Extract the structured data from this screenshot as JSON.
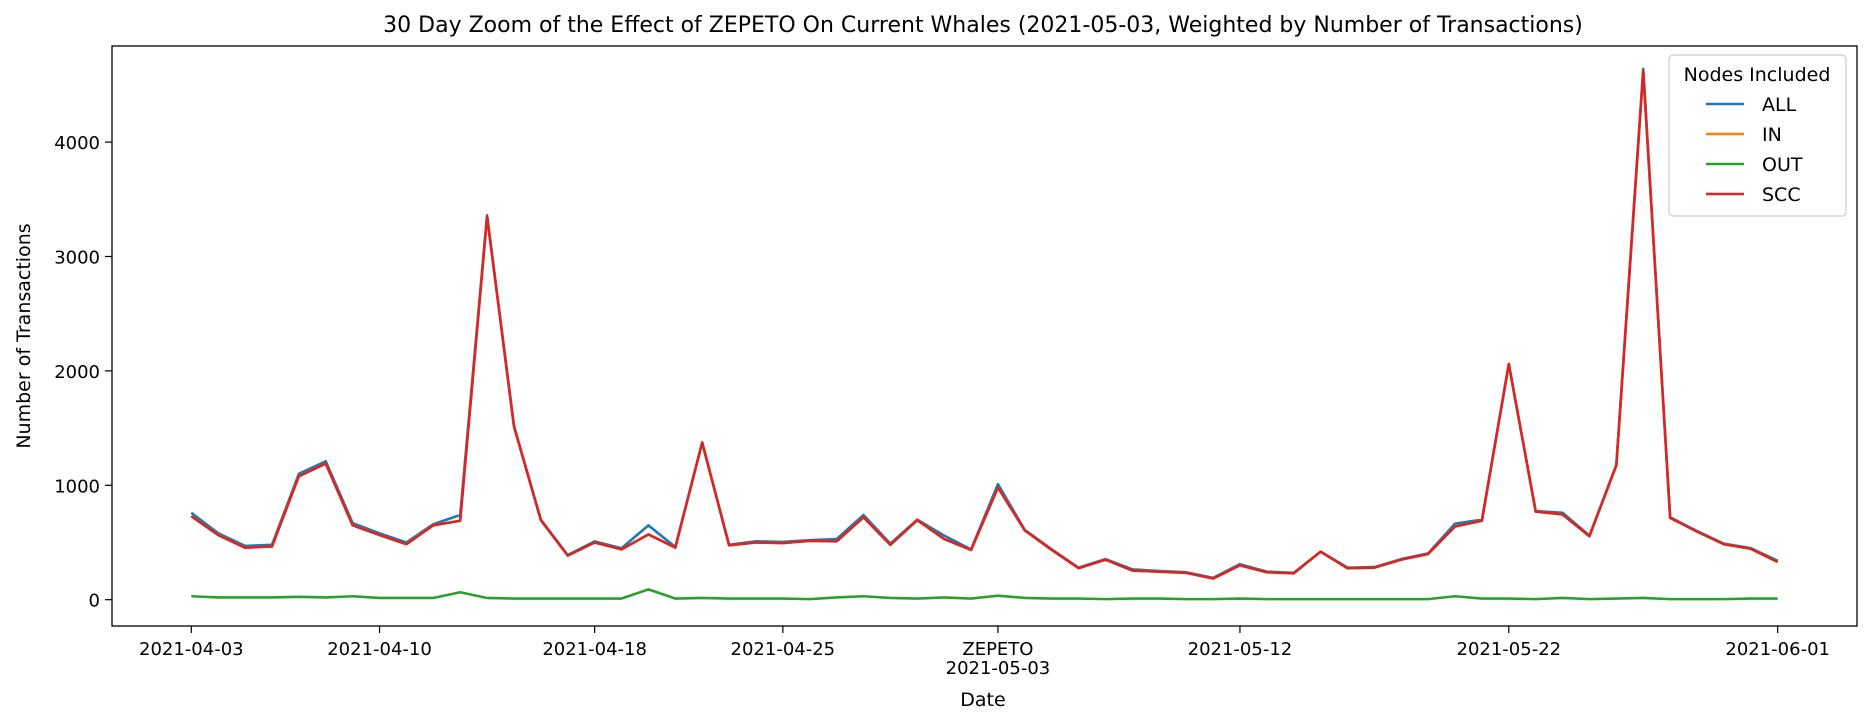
{
  "chart_data": {
    "type": "line",
    "title": "30 Day Zoom of the Effect of ZEPETO On Current Whales (2021-05-03, Weighted by Number of Transactions)",
    "xlabel": "Date",
    "ylabel": "Number of Transactions",
    "x_start": "2021-04-03",
    "x_end": "2021-06-01",
    "ylim": [
      -230,
      4840
    ],
    "yticks": [
      0,
      1000,
      2000,
      3000,
      4000
    ],
    "xticks": [
      "2021-04-03",
      "2021-04-10",
      "2021-04-18",
      "2021-04-25",
      "2021-05-03",
      "2021-05-12",
      "2021-05-22",
      "2021-06-01"
    ],
    "annotation": {
      "label": "ZEPETO",
      "date": "2021-05-03"
    },
    "grid": false,
    "legend": {
      "title": "Nodes Included",
      "placement": "top-right"
    },
    "series": [
      {
        "name": "ALL",
        "color": "#1f77b4",
        "values": [
          760,
          580,
          470,
          480,
          1100,
          1210,
          670,
          580,
          500,
          660,
          740,
          3360,
          1520,
          700,
          390,
          510,
          450,
          650,
          460,
          1370,
          480,
          510,
          505,
          520,
          530,
          740,
          490,
          700,
          560,
          440,
          1010,
          610,
          440,
          280,
          355,
          265,
          250,
          240,
          190,
          310,
          245,
          235,
          420,
          280,
          285,
          355,
          405,
          665,
          700,
          2060,
          775,
          760,
          560,
          1180,
          4640,
          720,
          600,
          490,
          450,
          340
        ]
      },
      {
        "name": "IN",
        "color": "#ff7f0e",
        "values": [
          730,
          565,
          455,
          465,
          1080,
          1190,
          650,
          565,
          485,
          650,
          690,
          3350,
          1515,
          695,
          385,
          500,
          440,
          570,
          455,
          1375,
          475,
          500,
          495,
          515,
          510,
          720,
          480,
          695,
          530,
          435,
          980,
          605,
          435,
          275,
          350,
          255,
          245,
          235,
          185,
          300,
          240,
          230,
          420,
          275,
          280,
          350,
          400,
          640,
          690,
          2060,
          770,
          745,
          555,
          1175,
          4620,
          715,
          595,
          485,
          445,
          330
        ]
      },
      {
        "name": "OUT",
        "color": "#2ca02c",
        "values": [
          30,
          20,
          20,
          20,
          25,
          20,
          30,
          15,
          15,
          15,
          65,
          15,
          10,
          10,
          10,
          10,
          10,
          90,
          10,
          15,
          10,
          10,
          10,
          5,
          20,
          30,
          15,
          10,
          20,
          10,
          35,
          15,
          10,
          10,
          5,
          10,
          10,
          5,
          5,
          10,
          5,
          5,
          5,
          5,
          5,
          5,
          5,
          30,
          10,
          10,
          5,
          15,
          5,
          10,
          15,
          5,
          5,
          5,
          10,
          10
        ]
      },
      {
        "name": "SCC",
        "color": "#d62728",
        "values": [
          730,
          565,
          455,
          465,
          1080,
          1190,
          650,
          565,
          485,
          650,
          690,
          3350,
          1515,
          695,
          385,
          500,
          440,
          570,
          455,
          1375,
          475,
          500,
          495,
          515,
          510,
          720,
          480,
          695,
          530,
          435,
          980,
          605,
          435,
          275,
          350,
          255,
          245,
          235,
          185,
          300,
          240,
          230,
          420,
          275,
          280,
          350,
          400,
          640,
          690,
          2060,
          770,
          745,
          555,
          1175,
          4620,
          715,
          595,
          485,
          445,
          330
        ]
      }
    ]
  }
}
